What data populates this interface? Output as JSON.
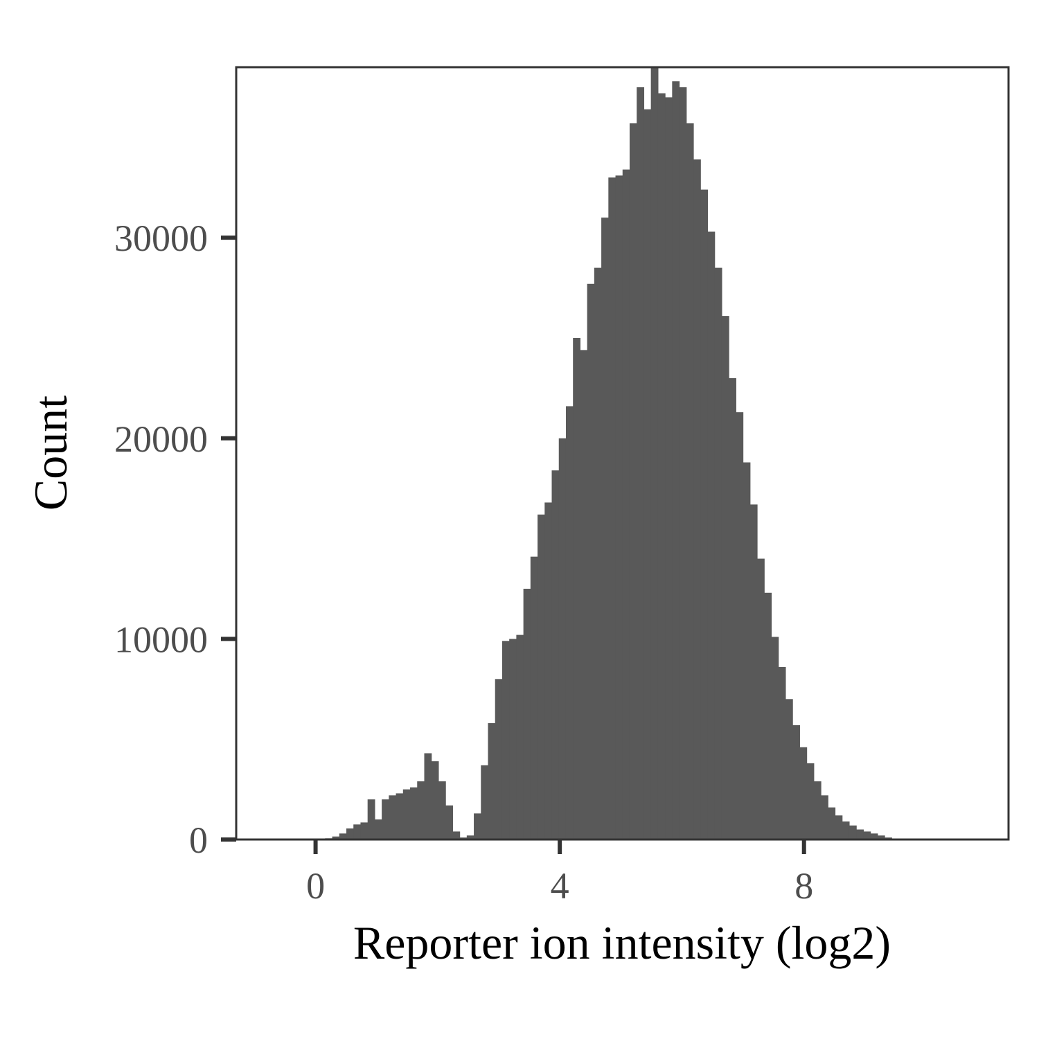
{
  "chart_data": {
    "type": "bar",
    "subtype": "histogram",
    "title": "",
    "xlabel": "Reporter ion intensity (log2)",
    "ylabel": "Count",
    "xlim": [
      -1.3,
      11.35
    ],
    "ylim": [
      0,
      38500
    ],
    "xticks": [
      0,
      4,
      8
    ],
    "xtick_labels": [
      "0",
      "4",
      "8"
    ],
    "yticks": [
      0,
      10000,
      20000,
      30000
    ],
    "ytick_labels": [
      "0",
      "10000",
      "20000",
      "30000"
    ],
    "grid": false,
    "legend": "none",
    "bar_color": "#595959",
    "frame_color": "#333333",
    "bin_width": 0.116,
    "bin_start": 0.04,
    "values": [
      30,
      60,
      150,
      300,
      550,
      750,
      850,
      2000,
      1000,
      2000,
      2200,
      2300,
      2500,
      2600,
      2900,
      4300,
      3900,
      2900,
      1700,
      400,
      100,
      200,
      1300,
      3700,
      5800,
      8000,
      9900,
      10000,
      10200,
      12500,
      14100,
      16200,
      16800,
      18400,
      20000,
      21600,
      25000,
      24400,
      27700,
      28500,
      31000,
      33000,
      33100,
      33400,
      35700,
      37500,
      36400,
      38500,
      37200,
      37000,
      37800,
      37500,
      35700,
      33900,
      32400,
      30300,
      28500,
      26100,
      23000,
      21300,
      18800,
      16700,
      14000,
      12300,
      10100,
      8600,
      7000,
      5700,
      4600,
      3800,
      2900,
      2200,
      1600,
      1200,
      900,
      700,
      500,
      400,
      300,
      200,
      100,
      50,
      20,
      10,
      5
    ]
  }
}
